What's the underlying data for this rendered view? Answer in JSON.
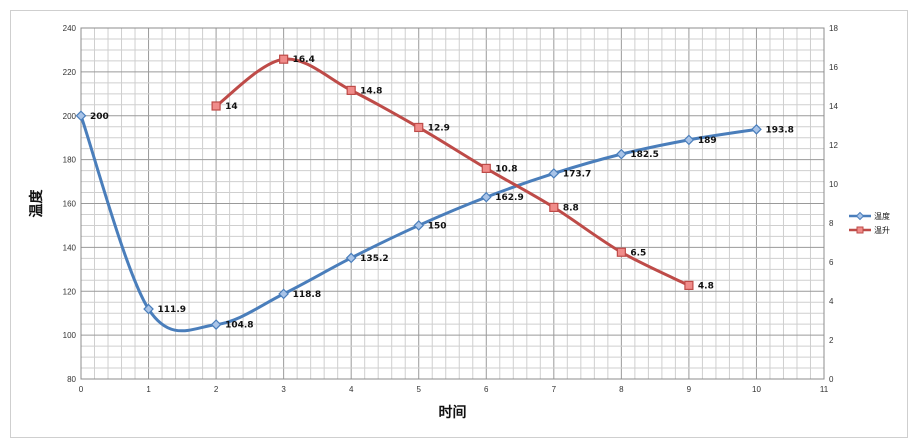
{
  "chart_data": {
    "type": "line",
    "xlabel": "时间",
    "ylabel": "温度",
    "xlim": [
      0,
      11
    ],
    "ylim": [
      80,
      240
    ],
    "y2lim": [
      0,
      18
    ],
    "grid": true,
    "legend_position": "right",
    "x_ticks": [
      "0",
      "1",
      "2",
      "3",
      "4",
      "5",
      "6",
      "7",
      "8",
      "9",
      "10",
      "11"
    ],
    "y_ticks": [
      "80",
      "100",
      "120",
      "140",
      "160",
      "180",
      "200",
      "220",
      "240"
    ],
    "y2_ticks": [
      "0",
      "2",
      "4",
      "6",
      "8",
      "10",
      "12",
      "14",
      "16",
      "18"
    ],
    "series": [
      {
        "name": "温度",
        "axis": "left",
        "color": "#4a7ebb",
        "marker": "diamond",
        "x": [
          0,
          1,
          2,
          3,
          4,
          5,
          6,
          7,
          8,
          9,
          10
        ],
        "values": [
          200,
          111.9,
          104.8,
          118.8,
          135.2,
          150,
          162.9,
          173.7,
          182.5,
          189,
          193.8
        ],
        "labels": [
          "200",
          "111.9",
          "104.8",
          "118.8",
          "135.2",
          "150",
          "162.9",
          "173.7",
          "182.5",
          "189",
          "193.8"
        ]
      },
      {
        "name": "温升",
        "axis": "right",
        "color": "#be4b48",
        "marker": "square",
        "x": [
          2,
          3,
          4,
          5,
          6,
          7,
          8,
          9
        ],
        "values": [
          14,
          16.4,
          14.8,
          12.9,
          10.8,
          8.8,
          6.5,
          4.8
        ],
        "labels": [
          "14",
          "16.4",
          "14.8",
          "12.9",
          "10.8",
          "8.8",
          "6.5",
          "4.8"
        ]
      }
    ]
  }
}
